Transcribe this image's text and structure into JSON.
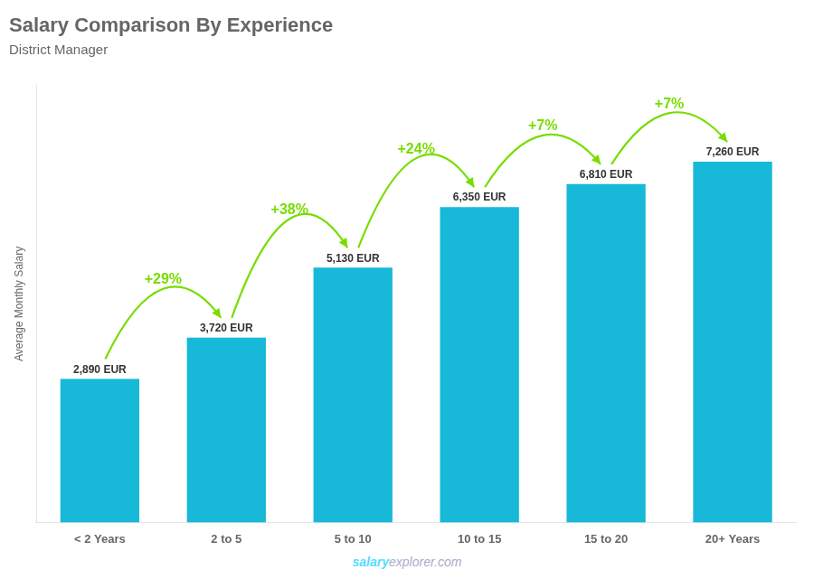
{
  "chart_data": {
    "type": "bar",
    "title": "Salary Comparison By Experience",
    "subtitle": "District Manager",
    "categories": [
      "< 2 Years",
      "2 to 5",
      "5 to 10",
      "10 to 15",
      "15 to 20",
      "20+ Years"
    ],
    "values": [
      2890,
      3720,
      5130,
      6350,
      6810,
      7260
    ],
    "value_labels": [
      "2,890 EUR",
      "3,720 EUR",
      "5,130 EUR",
      "6,350 EUR",
      "6,810 EUR",
      "7,260 EUR"
    ],
    "data_labels": true,
    "color": "#18b8d8",
    "y_label": "Average Monthly Salary",
    "ylim": [
      0,
      8800
    ],
    "grid": false,
    "tick_labels": "x",
    "annotations": [
      {
        "text": "+29%",
        "from": "< 2 Years",
        "to": "2 to 5",
        "color": "#77dd00"
      },
      {
        "text": "+38%",
        "from": "2 to 5",
        "to": "5 to 10",
        "color": "#77dd00"
      },
      {
        "text": "+24%",
        "from": "5 to 10",
        "to": "10 to 15",
        "color": "#77dd00"
      },
      {
        "text": "+7%",
        "from": "10 to 15",
        "to": "15 to 20",
        "color": "#77dd00"
      },
      {
        "text": "+7%",
        "from": "15 to 20",
        "to": "20+ Years",
        "color": "#77dd00"
      }
    ],
    "footer": [
      {
        "text": "salary",
        "color": "#55ddff"
      },
      {
        "text": "explorer.com",
        "color": "#aaaacc"
      }
    ]
  }
}
